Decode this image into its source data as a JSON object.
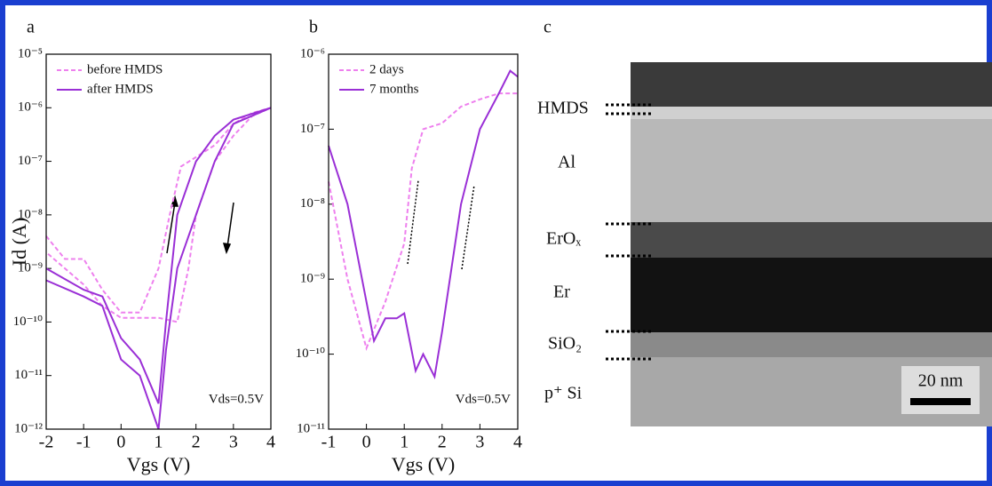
{
  "chart_data": [
    {
      "type": "line",
      "panel_label": "a",
      "xlabel": "Vgs (V)",
      "ylabel": "Id (A)",
      "log_y": true,
      "xlim": [
        -2,
        4
      ],
      "xticks": [
        -2,
        -1,
        0,
        1,
        2,
        3,
        4
      ],
      "ylim": [
        1e-12,
        1e-05
      ],
      "yticks": [
        {
          "value": 1e-12,
          "label": "10⁻¹²"
        },
        {
          "value": 1e-11,
          "label": "10⁻¹¹"
        },
        {
          "value": 1e-10,
          "label": "10⁻¹⁰"
        },
        {
          "value": 1e-09,
          "label": "10⁻⁹"
        },
        {
          "value": 1e-08,
          "label": "10⁻⁸"
        },
        {
          "value": 1e-07,
          "label": "10⁻⁷"
        },
        {
          "value": 1e-06,
          "label": "10⁻⁶"
        },
        {
          "value": 1e-05,
          "label": "10⁻⁵"
        }
      ],
      "legend": "upper left",
      "annotation": "Vds=0.5V",
      "series": [
        {
          "name": "before HMDS",
          "color": "#ee80ee",
          "style": "dashed",
          "x": [
            -2,
            -1.5,
            -1,
            -0.5,
            0,
            0.5,
            1,
            1.3,
            1.6,
            2,
            2.5,
            3,
            3.5,
            4,
            3.5,
            3,
            2.5,
            2,
            1.8,
            1.5,
            1,
            0.5,
            0,
            -0.5,
            -1,
            -1.5,
            -2
          ],
          "values": [
            4e-09,
            1.5e-09,
            1.5e-09,
            4e-10,
            1.5e-10,
            1.5e-10,
            1e-09,
            1e-08,
            8e-08,
            1.2e-07,
            2e-07,
            5e-07,
            8e-07,
            1e-06,
            7e-07,
            3e-07,
            1e-07,
            1e-08,
            1e-09,
            1e-10,
            1.2e-10,
            1.2e-10,
            1.2e-10,
            2e-10,
            5e-10,
            1e-09,
            2e-09
          ]
        },
        {
          "name": "after HMDS",
          "color": "#9a2fd6",
          "style": "solid",
          "x": [
            -2,
            -1,
            -0.5,
            0,
            0.5,
            1,
            1.2,
            1.5,
            2,
            2.5,
            3,
            4,
            3,
            2.5,
            2,
            1.5,
            1.2,
            1,
            0.5,
            0,
            -0.5,
            -1,
            -2
          ],
          "values": [
            1e-09,
            4e-10,
            3e-10,
            5e-11,
            2e-11,
            3e-12,
            1e-10,
            1e-08,
            1e-07,
            3e-07,
            6e-07,
            1e-06,
            5e-07,
            1e-07,
            1e-08,
            1e-09,
            3e-11,
            1e-12,
            1e-11,
            2e-11,
            2e-10,
            3e-10,
            6e-10
          ]
        }
      ]
    },
    {
      "type": "line",
      "panel_label": "b",
      "xlabel": "Vgs (V)",
      "log_y": true,
      "xlim": [
        -1,
        4
      ],
      "xticks": [
        -1,
        0,
        1,
        2,
        3,
        4
      ],
      "ylim": [
        1e-11,
        1e-06
      ],
      "yticks": [
        {
          "value": 1e-11,
          "label": "10⁻¹¹"
        },
        {
          "value": 1e-10,
          "label": "10⁻¹⁰"
        },
        {
          "value": 1e-09,
          "label": "10⁻⁹"
        },
        {
          "value": 1e-08,
          "label": "10⁻⁸"
        },
        {
          "value": 1e-07,
          "label": "10⁻⁷"
        },
        {
          "value": 1e-06,
          "label": "10⁻⁶"
        }
      ],
      "legend": "upper left",
      "annotation": "Vds=0.5V",
      "series": [
        {
          "name": "2 days",
          "color": "#ee80ee",
          "style": "dashed",
          "x": [
            -1,
            -0.5,
            0,
            0.5,
            1,
            1.2,
            1.5,
            2,
            2.5,
            3,
            3.5,
            4
          ],
          "values": [
            2e-08,
            1e-09,
            1.2e-10,
            5e-10,
            3e-09,
            3e-08,
            1e-07,
            1.2e-07,
            2e-07,
            2.5e-07,
            3e-07,
            3e-07
          ]
        },
        {
          "name": "7 months",
          "color": "#9a2fd6",
          "style": "solid",
          "x": [
            -1,
            -0.5,
            0,
            0.2,
            0.5,
            0.8,
            1,
            1.3,
            1.5,
            1.8,
            2,
            2.5,
            3,
            3.5,
            3.8,
            4
          ],
          "values": [
            6e-08,
            1e-08,
            5e-10,
            1.5e-10,
            3e-10,
            3e-10,
            3.5e-10,
            6e-11,
            1e-10,
            5e-11,
            2e-10,
            1e-08,
            1e-07,
            3e-07,
            6e-07,
            5e-07
          ]
        }
      ]
    }
  ],
  "image_panel": {
    "panel_label": "c",
    "layers": [
      "HMDS",
      "Al",
      "ErOₓ",
      "Er",
      "SiO₂",
      "p⁺ Si"
    ],
    "scale_bar": "20 nm"
  }
}
